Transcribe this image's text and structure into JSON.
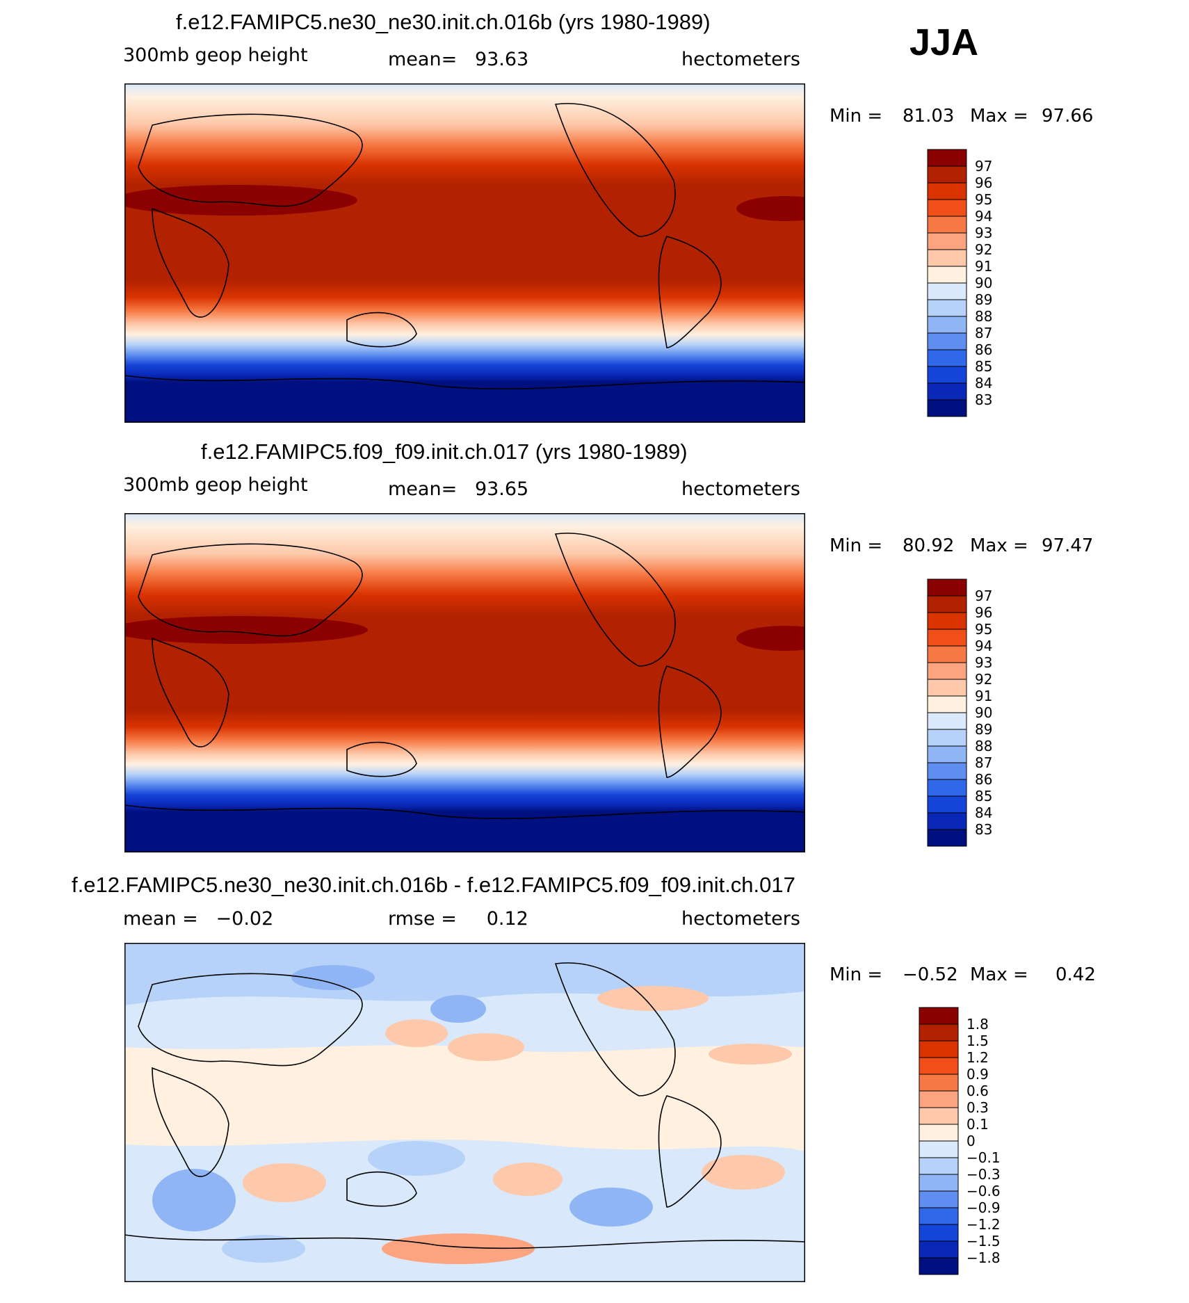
{
  "season": "JJA",
  "panels": [
    {
      "title": "f.e12.FAMIPC5.ne30_ne30.init.ch.016b (yrs 1980-1989)",
      "left_label": "300mb geop height",
      "center_label": "mean=   93.63",
      "units": "hectometers",
      "min_label": "Min =",
      "min_value": "81.03",
      "max_label": "Max =",
      "max_value": "97.66",
      "colorbar": {
        "levels": [
          "97",
          "96",
          "95",
          "94",
          "93",
          "92",
          "91",
          "90",
          "89",
          "88",
          "87",
          "86",
          "85",
          "84",
          "83"
        ],
        "colors": [
          "#8b0000",
          "#b22200",
          "#d93300",
          "#f04f1a",
          "#f77a45",
          "#fca47f",
          "#fdc9aa",
          "#fff0e0",
          "#d9e9fb",
          "#b6d2f8",
          "#8fb5f5",
          "#5f8ef0",
          "#3068ea",
          "#1545d8",
          "#0a28b8",
          "#001080"
        ]
      }
    },
    {
      "title": "f.e12.FAMIPC5.f09_f09.init.ch.017 (yrs 1980-1989)",
      "left_label": "300mb geop height",
      "center_label": "mean=   93.65",
      "units": "hectometers",
      "min_label": "Min =",
      "min_value": "80.92",
      "max_label": "Max =",
      "max_value": "97.47",
      "colorbar": {
        "levels": [
          "97",
          "96",
          "95",
          "94",
          "93",
          "92",
          "91",
          "90",
          "89",
          "88",
          "87",
          "86",
          "85",
          "84",
          "83"
        ],
        "colors": [
          "#8b0000",
          "#b22200",
          "#d93300",
          "#f04f1a",
          "#f77a45",
          "#fca47f",
          "#fdc9aa",
          "#fff0e0",
          "#d9e9fb",
          "#b6d2f8",
          "#8fb5f5",
          "#5f8ef0",
          "#3068ea",
          "#1545d8",
          "#0a28b8",
          "#001080"
        ]
      }
    },
    {
      "title": "f.e12.FAMIPC5.ne30_ne30.init.ch.016b - f.e12.FAMIPC5.f09_f09.init.ch.017",
      "left_label": "mean =   −0.02",
      "center_label": "rmse =     0.12",
      "units": "hectometers",
      "min_label": "Min =",
      "min_value": "−0.52",
      "max_label": "Max =",
      "max_value": "0.42",
      "colorbar": {
        "levels": [
          "1.8",
          "1.5",
          "1.2",
          "0.9",
          "0.6",
          "0.3",
          "0.1",
          "0",
          "−0.1",
          "−0.3",
          "−0.6",
          "−0.9",
          "−1.2",
          "−1.5",
          "−1.8"
        ],
        "colors": [
          "#8b0000",
          "#b22200",
          "#d93300",
          "#f04f1a",
          "#f77a45",
          "#fca47f",
          "#fdc9aa",
          "#fff0e0",
          "#d9e9fb",
          "#b6d2f8",
          "#8fb5f5",
          "#5f8ef0",
          "#3068ea",
          "#1545d8",
          "#0a28b8",
          "#001080"
        ]
      }
    }
  ]
}
